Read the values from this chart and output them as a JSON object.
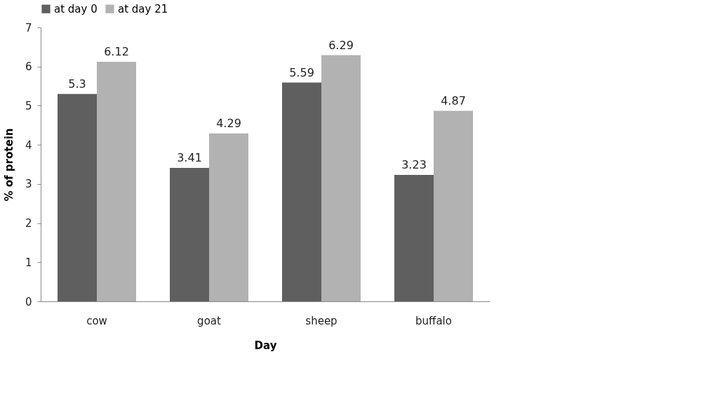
{
  "chart_data": {
    "type": "bar",
    "xlabel": "Day",
    "ylabel": "% of protein",
    "categories": [
      "cow",
      "goat",
      "sheep",
      "buffalo"
    ],
    "series": [
      {
        "name": "at day 0",
        "color": "#5f5f5f",
        "values": [
          5.3,
          3.41,
          5.59,
          3.23
        ]
      },
      {
        "name": "at day 21",
        "color": "#b2b2b2",
        "values": [
          6.12,
          4.29,
          6.29,
          4.87
        ]
      }
    ],
    "ylim": [
      0,
      7
    ],
    "yticks": [
      0,
      1,
      2,
      3,
      4,
      5,
      6,
      7
    ],
    "grid": false,
    "legend": "top",
    "data_labels": true
  }
}
